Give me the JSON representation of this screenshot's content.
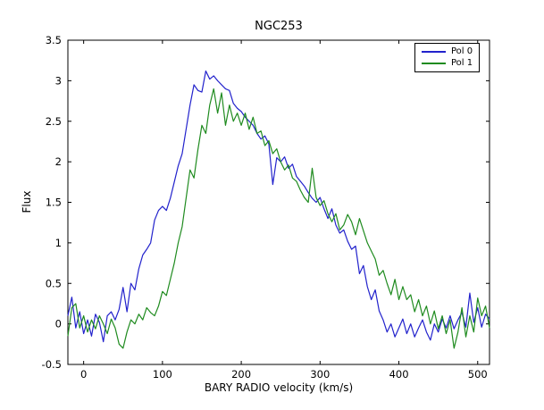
{
  "chart_data": {
    "type": "line",
    "title": "NGC253",
    "xlabel": "BARY RADIO velocity (km/s)",
    "ylabel": "Flux",
    "xlim": [
      -20,
      515
    ],
    "ylim": [
      -0.5,
      3.5
    ],
    "grid": false,
    "legend_position": "upper right",
    "background": "#ffffff",
    "axis_color": "#000000",
    "xticks": [
      0,
      100,
      200,
      300,
      400,
      500
    ],
    "xtick_labels": [
      "0",
      "100",
      "200",
      "300",
      "400",
      "500"
    ],
    "yticks": [
      -0.5,
      0,
      0.5,
      1,
      1.5,
      2,
      2.5,
      3,
      3.5
    ],
    "ytick_labels": [
      "-0.5",
      "0",
      "0.5",
      "1",
      "1.5",
      "2",
      "2.5",
      "3",
      "3.5"
    ],
    "x": [
      -20,
      -15,
      -10,
      -5,
      0,
      5,
      10,
      15,
      20,
      25,
      30,
      35,
      40,
      45,
      50,
      55,
      60,
      65,
      70,
      75,
      80,
      85,
      90,
      95,
      100,
      105,
      110,
      115,
      120,
      125,
      130,
      135,
      140,
      145,
      150,
      155,
      160,
      165,
      170,
      175,
      180,
      185,
      190,
      195,
      200,
      205,
      210,
      215,
      220,
      225,
      230,
      235,
      240,
      245,
      250,
      255,
      260,
      265,
      270,
      275,
      280,
      285,
      290,
      295,
      300,
      305,
      310,
      315,
      320,
      325,
      330,
      335,
      340,
      345,
      350,
      355,
      360,
      365,
      370,
      375,
      380,
      385,
      390,
      395,
      400,
      405,
      410,
      415,
      420,
      425,
      430,
      435,
      440,
      445,
      450,
      455,
      460,
      465,
      470,
      475,
      480,
      485,
      490,
      495,
      500,
      505,
      510,
      515
    ],
    "series": [
      {
        "name": "Pol 0",
        "color": "#2222cc",
        "values": [
          0.1,
          0.33,
          -0.05,
          0.15,
          -0.12,
          0.05,
          -0.15,
          0.12,
          0.02,
          -0.22,
          0.1,
          0.15,
          0.05,
          0.18,
          0.45,
          0.15,
          0.5,
          0.42,
          0.68,
          0.85,
          0.92,
          1.0,
          1.28,
          1.4,
          1.45,
          1.4,
          1.55,
          1.75,
          1.95,
          2.1,
          2.4,
          2.7,
          2.95,
          2.88,
          2.86,
          3.12,
          3.02,
          3.06,
          3.0,
          2.95,
          2.9,
          2.88,
          2.72,
          2.66,
          2.62,
          2.55,
          2.5,
          2.45,
          2.35,
          2.28,
          2.32,
          2.22,
          1.72,
          2.05,
          2.0,
          2.06,
          1.92,
          1.97,
          1.82,
          1.76,
          1.7,
          1.62,
          1.55,
          1.5,
          1.56,
          1.42,
          1.3,
          1.42,
          1.22,
          1.12,
          1.16,
          1.02,
          0.92,
          0.96,
          0.62,
          0.72,
          0.46,
          0.3,
          0.42,
          0.16,
          0.05,
          -0.1,
          0.0,
          -0.16,
          -0.05,
          0.06,
          -0.12,
          0.0,
          -0.16,
          -0.05,
          0.05,
          -0.1,
          -0.2,
          0.0,
          -0.1,
          0.06,
          -0.05,
          0.1,
          -0.06,
          0.05,
          0.14,
          -0.04,
          0.38,
          0.02,
          0.2,
          -0.04,
          0.12,
          0.06
        ]
      },
      {
        "name": "Pol 1",
        "color": "#1f8b1f",
        "values": [
          -0.15,
          0.2,
          0.25,
          -0.05,
          0.1,
          -0.1,
          0.05,
          -0.06,
          0.1,
          0.0,
          -0.12,
          0.06,
          -0.05,
          -0.25,
          -0.3,
          -0.1,
          0.05,
          0.0,
          0.12,
          0.05,
          0.2,
          0.14,
          0.1,
          0.22,
          0.4,
          0.35,
          0.55,
          0.75,
          1.0,
          1.2,
          1.55,
          1.9,
          1.8,
          2.15,
          2.45,
          2.35,
          2.7,
          2.9,
          2.6,
          2.85,
          2.45,
          2.7,
          2.5,
          2.6,
          2.45,
          2.6,
          2.4,
          2.55,
          2.35,
          2.38,
          2.2,
          2.26,
          2.1,
          2.16,
          2.0,
          1.9,
          1.96,
          1.8,
          1.76,
          1.65,
          1.56,
          1.5,
          1.92,
          1.56,
          1.46,
          1.52,
          1.36,
          1.26,
          1.36,
          1.16,
          1.22,
          1.35,
          1.26,
          1.1,
          1.3,
          1.15,
          1.0,
          0.9,
          0.8,
          0.6,
          0.66,
          0.5,
          0.36,
          0.55,
          0.3,
          0.46,
          0.3,
          0.36,
          0.15,
          0.3,
          0.1,
          0.22,
          0.0,
          0.16,
          -0.06,
          0.1,
          -0.12,
          0.05,
          -0.3,
          -0.1,
          0.2,
          -0.16,
          0.1,
          -0.1,
          0.32,
          0.1,
          0.22,
          -0.05
        ]
      }
    ]
  }
}
